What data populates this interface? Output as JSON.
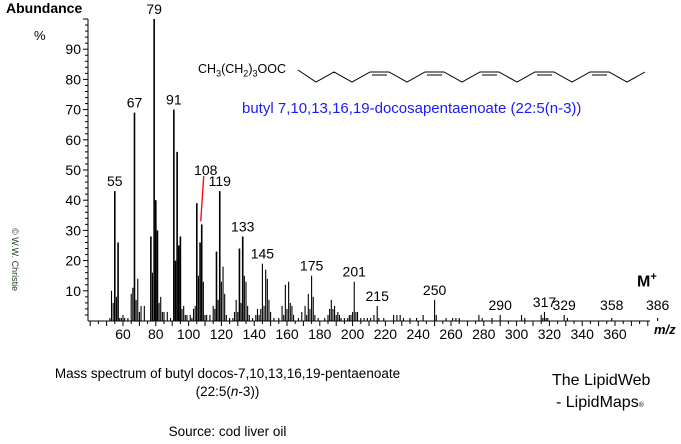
{
  "chart_data": {
    "type": "bar",
    "title": "",
    "ylabel": "Abundance",
    "yunit": "%",
    "xlabel": "m/z",
    "xlim": [
      38,
      383
    ],
    "ylim": [
      0,
      100
    ],
    "xticks": [
      60,
      80,
      100,
      120,
      140,
      160,
      180,
      200,
      220,
      240,
      260,
      280,
      300,
      320,
      340,
      360
    ],
    "yticks": [
      10,
      20,
      30,
      40,
      50,
      60,
      70,
      80,
      90
    ],
    "grid": false,
    "peaks": [
      [
        52,
        1
      ],
      [
        53,
        10
      ],
      [
        54,
        6
      ],
      [
        55,
        43
      ],
      [
        56,
        8
      ],
      [
        57,
        26
      ],
      [
        58,
        1
      ],
      [
        59,
        1
      ],
      [
        60,
        2
      ],
      [
        61,
        1
      ],
      [
        63,
        1
      ],
      [
        65,
        9
      ],
      [
        66,
        11
      ],
      [
        67,
        69
      ],
      [
        68,
        7
      ],
      [
        69,
        14
      ],
      [
        70,
        3
      ],
      [
        71,
        5
      ],
      [
        73,
        5
      ],
      [
        77,
        28
      ],
      [
        78,
        16
      ],
      [
        79,
        100
      ],
      [
        80,
        40
      ],
      [
        81,
        30
      ],
      [
        82,
        6
      ],
      [
        83,
        8
      ],
      [
        84,
        3
      ],
      [
        85,
        3
      ],
      [
        87,
        3
      ],
      [
        89,
        1
      ],
      [
        91,
        70
      ],
      [
        92,
        20
      ],
      [
        93,
        56
      ],
      [
        94,
        25
      ],
      [
        95,
        28
      ],
      [
        96,
        4
      ],
      [
        97,
        5
      ],
      [
        98,
        2
      ],
      [
        99,
        2
      ],
      [
        101,
        2
      ],
      [
        102,
        1
      ],
      [
        103,
        4
      ],
      [
        104,
        5
      ],
      [
        105,
        39
      ],
      [
        106,
        15
      ],
      [
        107,
        26
      ],
      [
        108,
        32
      ],
      [
        109,
        13
      ],
      [
        110,
        2
      ],
      [
        111,
        2
      ],
      [
        113,
        2
      ],
      [
        115,
        5
      ],
      [
        116,
        4
      ],
      [
        117,
        23
      ],
      [
        118,
        7
      ],
      [
        119,
        43
      ],
      [
        120,
        13
      ],
      [
        121,
        18
      ],
      [
        122,
        9
      ],
      [
        123,
        2
      ],
      [
        125,
        1
      ],
      [
        127,
        1
      ],
      [
        128,
        3
      ],
      [
        129,
        7
      ],
      [
        130,
        3
      ],
      [
        131,
        24
      ],
      [
        132,
        6
      ],
      [
        133,
        28
      ],
      [
        134,
        15
      ],
      [
        135,
        13
      ],
      [
        136,
        5
      ],
      [
        137,
        2
      ],
      [
        139,
        1
      ],
      [
        141,
        2
      ],
      [
        142,
        4
      ],
      [
        143,
        2
      ],
      [
        144,
        4
      ],
      [
        145,
        19
      ],
      [
        146,
        5
      ],
      [
        147,
        17
      ],
      [
        148,
        14
      ],
      [
        149,
        7
      ],
      [
        150,
        3
      ],
      [
        152,
        1
      ],
      [
        155,
        1
      ],
      [
        157,
        5
      ],
      [
        158,
        2
      ],
      [
        159,
        12
      ],
      [
        160,
        4
      ],
      [
        161,
        13
      ],
      [
        162,
        6
      ],
      [
        163,
        5
      ],
      [
        164,
        2
      ],
      [
        167,
        1
      ],
      [
        169,
        3
      ],
      [
        171,
        5
      ],
      [
        172,
        2
      ],
      [
        173,
        9
      ],
      [
        174,
        4
      ],
      [
        175,
        15
      ],
      [
        176,
        8
      ],
      [
        177,
        2
      ],
      [
        179,
        1
      ],
      [
        183,
        1
      ],
      [
        185,
        2
      ],
      [
        186,
        4
      ],
      [
        187,
        7
      ],
      [
        188,
        4
      ],
      [
        189,
        5
      ],
      [
        190,
        2
      ],
      [
        191,
        3
      ],
      [
        192,
        2
      ],
      [
        193,
        1
      ],
      [
        195,
        1
      ],
      [
        197,
        1
      ],
      [
        198,
        2
      ],
      [
        199,
        2
      ],
      [
        200,
        3
      ],
      [
        201,
        13
      ],
      [
        202,
        3
      ],
      [
        203,
        3
      ],
      [
        205,
        1
      ],
      [
        207,
        1
      ],
      [
        209,
        1
      ],
      [
        211,
        1
      ],
      [
        213,
        2
      ],
      [
        215,
        5
      ],
      [
        216,
        1
      ],
      [
        219,
        1
      ],
      [
        225,
        2
      ],
      [
        227,
        2
      ],
      [
        229,
        2
      ],
      [
        231,
        1
      ],
      [
        235,
        1
      ],
      [
        239,
        1
      ],
      [
        243,
        2
      ],
      [
        250,
        7
      ],
      [
        251,
        2
      ],
      [
        257,
        1
      ],
      [
        261,
        1
      ],
      [
        263,
        1
      ],
      [
        265,
        1
      ],
      [
        277,
        2
      ],
      [
        279,
        1
      ],
      [
        285,
        1
      ],
      [
        290,
        2
      ],
      [
        303,
        2
      ],
      [
        305,
        1
      ],
      [
        315,
        2
      ],
      [
        316,
        1
      ],
      [
        317,
        3
      ],
      [
        318,
        1
      ],
      [
        319,
        1
      ],
      [
        329,
        2
      ],
      [
        331,
        1
      ],
      [
        358,
        1
      ],
      [
        386,
        1
      ]
    ],
    "peak_labels": [
      {
        "mz": 55,
        "text": "55"
      },
      {
        "mz": 67,
        "text": "67"
      },
      {
        "mz": 79,
        "text": "79"
      },
      {
        "mz": 91,
        "text": "91"
      },
      {
        "mz": 108,
        "text": "108",
        "leader": true
      },
      {
        "mz": 119,
        "text": "119"
      },
      {
        "mz": 133,
        "text": "133"
      },
      {
        "mz": 145,
        "text": "145"
      },
      {
        "mz": 175,
        "text": "175"
      },
      {
        "mz": 201,
        "text": "201"
      },
      {
        "mz": 215,
        "text": "215"
      },
      {
        "mz": 250,
        "text": "250"
      },
      {
        "mz": 290,
        "text": "290"
      },
      {
        "mz": 317,
        "text": "317"
      },
      {
        "mz": 329,
        "text": "329"
      },
      {
        "mz": 358,
        "text": "358"
      },
      {
        "mz": 386,
        "text": "386"
      }
    ],
    "colors": {
      "bars": "#000000",
      "leader": "#ff0000",
      "compound_name": "#1a1aff"
    }
  },
  "structure": {
    "formula_parts": [
      "CH",
      "3",
      "(CH",
      "2",
      ")",
      "3",
      "OOC"
    ]
  },
  "compound_name": "butyl 7,10,13,16,19-docosapentaenoate  (22:5(n-3))",
  "molecular_ion": {
    "label": "M",
    "sup": "+"
  },
  "copyright": "© W.W. Christie",
  "caption": {
    "line1": "Mass spectrum of butyl docos-7,10,13,16,19-pentaenoate",
    "line2_pre": "(22:5(",
    "line2_it": "n",
    "line2_post": "-3))",
    "line3": "Source: cod liver oil"
  },
  "brand": {
    "line1": "The LipidWeb",
    "line2": "- LipidMaps",
    "mark": "®"
  }
}
